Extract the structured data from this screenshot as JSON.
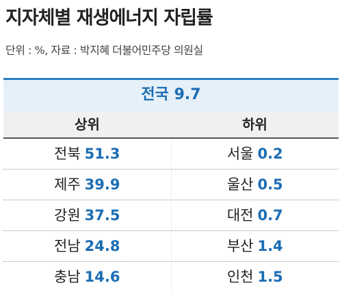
{
  "header": {
    "title": "지자체별 재생에너지 자립률",
    "subtitle": "단위 : %, 자료 : 박지혜 더불어민주당 의원실"
  },
  "national": {
    "label": "전국",
    "value": 9.7
  },
  "table": {
    "columns": [
      "상위",
      "하위"
    ],
    "rows": [
      [
        {
          "name": "전북",
          "value": 51.3
        },
        {
          "name": "서울",
          "value": 0.2
        }
      ],
      [
        {
          "name": "제주",
          "value": 39.9
        },
        {
          "name": "울산",
          "value": 0.5
        }
      ],
      [
        {
          "name": "강원",
          "value": 37.5
        },
        {
          "name": "대전",
          "value": 0.7
        }
      ],
      [
        {
          "name": "전남",
          "value": 24.8
        },
        {
          "name": "부산",
          "value": 1.4
        }
      ],
      [
        {
          "name": "충남",
          "value": 14.6
        },
        {
          "name": "인천",
          "value": 1.5
        }
      ]
    ]
  }
}
